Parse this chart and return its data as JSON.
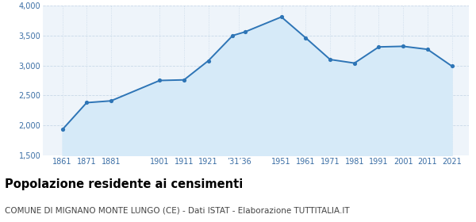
{
  "years": [
    1861,
    1871,
    1881,
    1901,
    1911,
    1921,
    1931,
    1936,
    1951,
    1961,
    1971,
    1981,
    1991,
    2001,
    2011,
    2021
  ],
  "population": [
    1930,
    2380,
    2410,
    2750,
    2760,
    3080,
    3500,
    3560,
    3810,
    3460,
    3100,
    3040,
    3310,
    3320,
    3270,
    2990
  ],
  "ylim": [
    1500,
    4000
  ],
  "yticks": [
    1500,
    2000,
    2500,
    3000,
    3500,
    4000
  ],
  "line_color": "#2e75b6",
  "fill_color": "#d6eaf8",
  "marker_color": "#2e75b6",
  "grid_color": "#c8d8e8",
  "background_color": "#eef4fa",
  "title": "Popolazione residente ai censimenti",
  "subtitle": "COMUNE DI MIGNANO MONTE LUNGO (CE) - Dati ISTAT - Elaborazione TUTTITALIA.IT",
  "title_fontsize": 10.5,
  "subtitle_fontsize": 7.5,
  "title_color": "#000000",
  "subtitle_color": "#444444",
  "axis_label_color": "#3a6ea5",
  "axis_tick_fontsize": 7.0,
  "x_positions": [
    1861,
    1871,
    1881,
    1901,
    1911,
    1921,
    1933.5,
    1951,
    1961,
    1971,
    1981,
    1991,
    2001,
    2011,
    2021
  ],
  "x_labels_text": [
    "1861",
    "1871",
    "1881",
    "1901",
    "1911",
    "1921",
    "’31’36",
    "1951",
    "1961",
    "1971",
    "1981",
    "1991",
    "2001",
    "2011",
    "2021"
  ],
  "xlim": [
    1853,
    2028
  ]
}
